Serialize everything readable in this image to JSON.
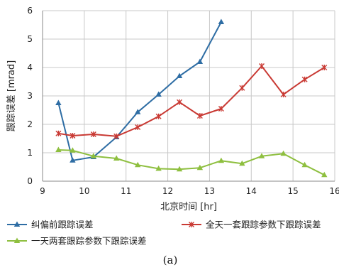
{
  "caption": "(a)",
  "chart_data": {
    "type": "line",
    "xlabel": "北京时间 [hr]",
    "ylabel": "跟踪误差 [mrad]",
    "xlim": [
      9,
      16
    ],
    "ylim": [
      0,
      6
    ],
    "xticks": [
      9,
      10,
      11,
      12,
      13,
      14,
      15,
      16
    ],
    "yticks": [
      0,
      1,
      2,
      3,
      4,
      5,
      6
    ],
    "grid": "horizontal",
    "legend": "bottom",
    "series": [
      {
        "name": "纠偏前跟踪误差",
        "color": "#2e6da4",
        "marker": "triangle",
        "x": [
          9.38,
          9.72,
          10.22,
          10.77,
          11.28,
          11.78,
          12.28,
          12.77,
          13.28
        ],
        "y": [
          2.75,
          0.73,
          0.85,
          1.55,
          2.43,
          3.05,
          3.7,
          4.2,
          5.6
        ]
      },
      {
        "name": "全天一套跟踪参数下跟踪误差",
        "color": "#c93a34",
        "marker": "star",
        "x": [
          9.38,
          9.72,
          10.22,
          10.77,
          11.28,
          11.78,
          12.28,
          12.77,
          13.28,
          13.78,
          14.25,
          14.77,
          15.28,
          15.75
        ],
        "y": [
          1.68,
          1.6,
          1.65,
          1.58,
          1.9,
          2.28,
          2.78,
          2.3,
          2.55,
          3.28,
          4.05,
          3.05,
          3.58,
          4.0
        ]
      },
      {
        "name": "一天两套跟踪参数下跟踪误差",
        "color": "#8ebf3f",
        "marker": "triangle",
        "x": [
          9.38,
          9.72,
          10.22,
          10.77,
          11.28,
          11.78,
          12.28,
          12.77,
          13.28,
          13.78,
          14.25,
          14.77,
          15.28,
          15.75
        ],
        "y": [
          1.1,
          1.08,
          0.88,
          0.8,
          0.57,
          0.44,
          0.42,
          0.47,
          0.72,
          0.62,
          0.88,
          0.97,
          0.57,
          0.22
        ]
      }
    ]
  }
}
